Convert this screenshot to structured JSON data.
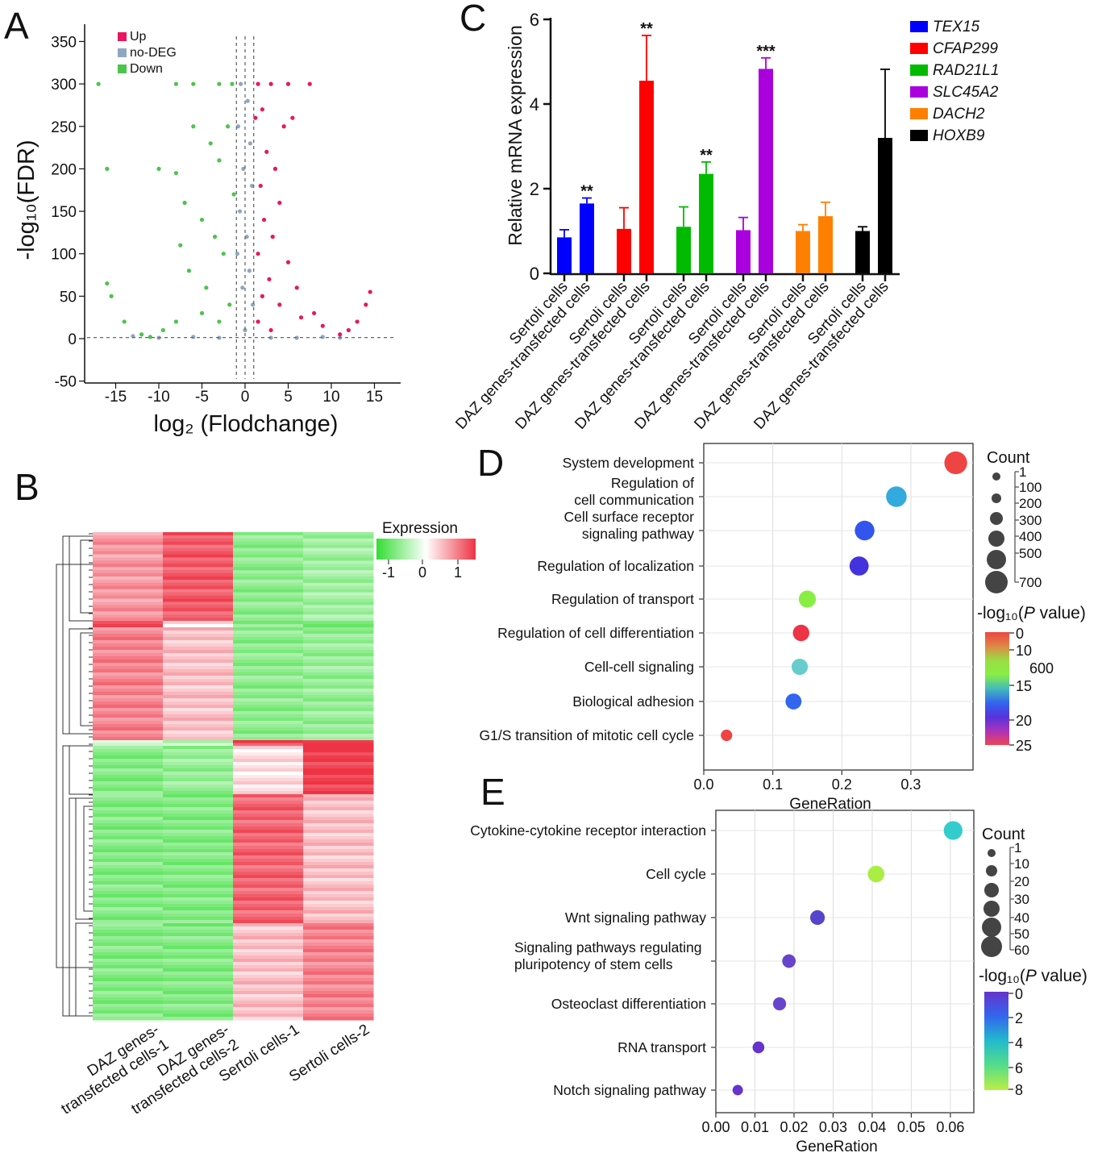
{
  "chart_data": [
    {
      "panel": "A",
      "type": "scatter",
      "xlabel": "log₂ (Flodchange)",
      "ylabel": "-log₁₀(FDR)",
      "xticks": [
        -15,
        -10,
        -5,
        0,
        5,
        10,
        15
      ],
      "yticks": [
        -50,
        0,
        50,
        100,
        150,
        200,
        250,
        300,
        350
      ],
      "xlim": [
        -18.5,
        18
      ],
      "ylim": [
        -50,
        370
      ],
      "legend": [
        {
          "name": "Up",
          "color": "#e8175d"
        },
        {
          "name": "no-DEG",
          "color": "#8fa6bf"
        },
        {
          "name": "Down",
          "color": "#4cc44c"
        }
      ],
      "legend_position": "top-left",
      "threshold_lines": {
        "x": [
          -1,
          0,
          1
        ],
        "y": 1.3
      },
      "points": {
        "Up": [
          [
            1.5,
            300
          ],
          [
            3,
            300
          ],
          [
            5,
            300
          ],
          [
            7.5,
            300
          ],
          [
            2,
            270
          ],
          [
            4.5,
            250
          ],
          [
            5.5,
            260
          ],
          [
            2.5,
            220
          ],
          [
            3.5,
            200
          ],
          [
            1.8,
            180
          ],
          [
            4,
            160
          ],
          [
            2.2,
            140
          ],
          [
            3.2,
            120
          ],
          [
            1.5,
            100
          ],
          [
            5,
            90
          ],
          [
            2.8,
            70
          ],
          [
            6,
            60
          ],
          [
            4,
            40
          ],
          [
            8,
            30
          ],
          [
            1.5,
            20
          ],
          [
            9,
            15
          ],
          [
            12,
            10
          ],
          [
            13,
            20
          ],
          [
            14,
            40
          ],
          [
            14.5,
            55
          ],
          [
            11,
            5
          ],
          [
            3,
            10
          ],
          [
            2,
            50
          ],
          [
            6.5,
            25
          ],
          [
            1.2,
            260
          ]
        ],
        "no-DEG": [
          [
            -0.5,
            300
          ],
          [
            0.3,
            280
          ],
          [
            -0.8,
            250
          ],
          [
            0.6,
            230
          ],
          [
            -0.2,
            200
          ],
          [
            0.8,
            180
          ],
          [
            -0.6,
            150
          ],
          [
            0.2,
            120
          ],
          [
            -0.9,
            100
          ],
          [
            0.5,
            80
          ],
          [
            -0.3,
            60
          ],
          [
            0.9,
            40
          ],
          [
            -6,
            2
          ],
          [
            -3,
            1
          ],
          [
            3,
            1
          ],
          [
            6,
            1
          ],
          [
            9,
            2
          ],
          [
            -10,
            1
          ],
          [
            11,
            1
          ],
          [
            -13,
            3
          ],
          [
            0,
            10
          ]
        ],
        "Down": [
          [
            -1.5,
            300
          ],
          [
            -3,
            300
          ],
          [
            -6,
            300
          ],
          [
            -8,
            300
          ],
          [
            -17,
            300
          ],
          [
            -16,
            200
          ],
          [
            -10,
            200
          ],
          [
            -8,
            195
          ],
          [
            -7,
            160
          ],
          [
            -6,
            250
          ],
          [
            -4,
            230
          ],
          [
            -3,
            210
          ],
          [
            -2,
            250
          ],
          [
            -5,
            140
          ],
          [
            -3.5,
            120
          ],
          [
            -2.5,
            100
          ],
          [
            -6.5,
            80
          ],
          [
            -4.5,
            60
          ],
          [
            -1.8,
            40
          ],
          [
            -8,
            20
          ],
          [
            -9.5,
            10
          ],
          [
            -12,
            5
          ],
          [
            -14,
            20
          ],
          [
            -15.5,
            50
          ],
          [
            -16,
            65
          ],
          [
            -11,
            2
          ],
          [
            -3,
            20
          ],
          [
            -5,
            30
          ],
          [
            -1.3,
            170
          ],
          [
            -7.5,
            110
          ]
        ]
      }
    },
    {
      "panel": "B",
      "type": "heatmap",
      "columns": [
        "DAZ genes-transfected cells-1",
        "DAZ genes-transfected cells-2",
        "Sertoli cells-1",
        "Sertoli cells-2"
      ],
      "legend_title": "Expression",
      "color_scale": {
        "min": -1,
        "mid": 0,
        "max": 1,
        "ticks": [
          "-1",
          "0",
          "1"
        ],
        "colors": [
          "#33dd33",
          "#ffffff",
          "#ee3344"
        ]
      },
      "row_blocks": [
        {
          "rows": 110,
          "values": [
            0.5,
            0.8,
            -0.55,
            -0.45
          ]
        },
        {
          "rows": 8,
          "values": [
            1.0,
            0.1,
            -0.6,
            -0.6
          ]
        },
        {
          "rows": 140,
          "values": [
            0.6,
            0.3,
            -0.55,
            -0.5
          ]
        },
        {
          "rows": 7,
          "values": [
            -0.3,
            -0.3,
            0.9,
            0.9
          ]
        },
        {
          "rows": 60,
          "values": [
            -0.6,
            -0.5,
            0.15,
            0.95
          ]
        },
        {
          "rows": 160,
          "values": [
            -0.6,
            -0.6,
            0.75,
            0.3
          ]
        },
        {
          "rows": 120,
          "values": [
            -0.6,
            -0.6,
            0.3,
            0.6
          ]
        }
      ]
    },
    {
      "panel": "C",
      "type": "bar",
      "ylabel": "Relative mRNA expression",
      "ylim": [
        0,
        6
      ],
      "yticks": [
        0,
        2,
        4,
        6
      ],
      "categories": [
        "Sertoli cells",
        "DAZ genes-transfected cells"
      ],
      "legend_position": "right",
      "series": [
        {
          "name": "TEX15",
          "color": "#0000ff",
          "values": [
            0.85,
            1.65
          ],
          "errors": [
            0.18,
            0.13
          ],
          "significance": "**"
        },
        {
          "name": "CFAP299",
          "color": "#ff0000",
          "values": [
            1.05,
            4.55
          ],
          "errors": [
            0.5,
            1.07
          ],
          "significance": "**"
        },
        {
          "name": "RAD21L1",
          "color": "#00bb00",
          "values": [
            1.1,
            2.35
          ],
          "errors": [
            0.47,
            0.28
          ],
          "significance": "**"
        },
        {
          "name": "SLC45A2",
          "color": "#aa00dd",
          "values": [
            1.02,
            4.83
          ],
          "errors": [
            0.3,
            0.26
          ],
          "significance": "***"
        },
        {
          "name": "DACH2",
          "color": "#ff8000",
          "values": [
            1.0,
            1.35
          ],
          "errors": [
            0.15,
            0.33
          ],
          "significance": ""
        },
        {
          "name": "HOXB9",
          "color": "#000000",
          "values": [
            1.0,
            3.2
          ],
          "errors": [
            0.1,
            1.62
          ],
          "significance": ""
        }
      ]
    },
    {
      "panel": "D",
      "type": "scatter",
      "xlabel": "GeneRation",
      "xlim": [
        0,
        0.39
      ],
      "xticks": [
        "0.0",
        "0.1",
        "0.2",
        "0.3"
      ],
      "grid": true,
      "terms": [
        "System development",
        "Regulation of\ncell communication",
        "Cell surface receptor\nsignaling pathway",
        "Regulation of localization",
        "Regulation of transport",
        "Regulation of cell differentiation",
        "Cell-cell signaling",
        "Biological adhesion",
        "G1/S transition of mitotic cell cycle"
      ],
      "gene_ratio": [
        0.365,
        0.279,
        0.233,
        0.225,
        0.15,
        0.141,
        0.139,
        0.13,
        0.033
      ],
      "count": [
        640,
        480,
        420,
        390,
        270,
        240,
        230,
        220,
        60
      ],
      "colors": [
        "#ee4444",
        "#33aadd",
        "#3355ee",
        "#4433dd",
        "#88ee44",
        "#ee3344",
        "#66cccc",
        "#3366ee",
        "#ee4444"
      ],
      "size_legend": {
        "title": "Count",
        "ticks": [
          "1",
          "100",
          "200",
          "300",
          "400",
          "500",
          "700"
        ]
      },
      "color_legend": {
        "title": "-log₁₀(",
        "title_italic": "P",
        "title_end": " value)",
        "ticks": [
          "0",
          "10",
          "600",
          "15",
          "20",
          "25"
        ]
      }
    },
    {
      "panel": "E",
      "type": "scatter",
      "xlabel": "GeneRation",
      "xlim": [
        0,
        0.066
      ],
      "xticks": [
        "0.00",
        "0.01",
        "0.02",
        "0.03",
        "0.04",
        "0.05",
        "0.06"
      ],
      "grid": true,
      "terms": [
        "Cytokine-cytokine receptor interaction",
        "Cell cycle",
        "Wnt signaling pathway",
        "Signaling pathways regulating\npluripotency of stem cells",
        "Osteoclast differentiation",
        "RNA transport",
        "Notch signaling pathway"
      ],
      "gene_ratio": [
        0.0607,
        0.041,
        0.026,
        0.0187,
        0.0163,
        0.0109,
        0.0056
      ],
      "count": [
        58,
        40,
        26,
        19,
        17,
        11,
        6
      ],
      "colors": [
        "#33cccc",
        "#aaee44",
        "#5544cc",
        "#6644cc",
        "#6644cc",
        "#6633cc",
        "#6633cc"
      ],
      "size_legend": {
        "title": "Count",
        "ticks": [
          "1",
          "10",
          "20",
          "30",
          "40",
          "50",
          "60"
        ]
      },
      "color_legend": {
        "title": "-log₁₀(",
        "title_italic": "P",
        "title_end": " value)",
        "ticks": [
          "0",
          "2",
          "4",
          "6",
          "8"
        ]
      }
    }
  ],
  "panel_labels": [
    "A",
    "B",
    "C",
    "D",
    "E"
  ]
}
